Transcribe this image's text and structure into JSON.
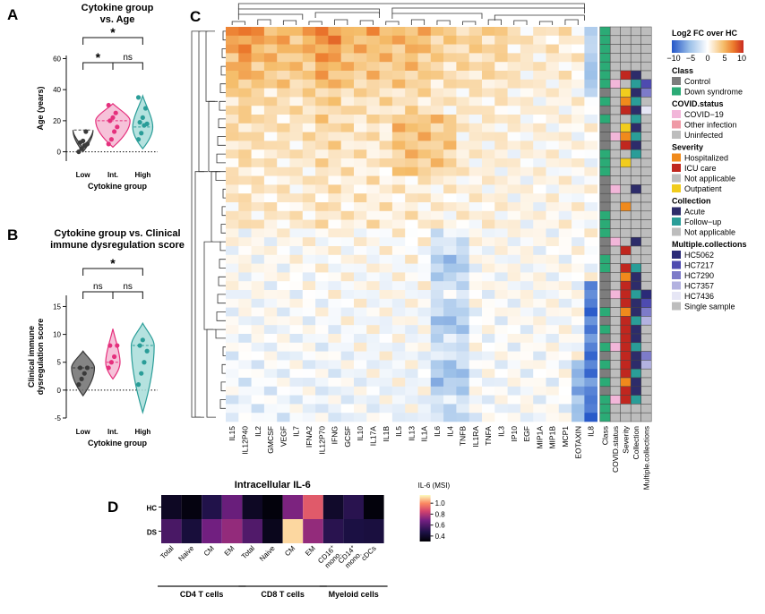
{
  "panels": {
    "A": "A",
    "B": "B",
    "C": "C",
    "D": "D"
  },
  "chart_data": [
    {
      "id": "A",
      "type": "violin",
      "title_lines": [
        "Cytokine group",
        "vs. Age"
      ],
      "xlabel": "Cytokine group",
      "ylabel": "Age (years)",
      "categories": [
        "Low",
        "Int.",
        "High"
      ],
      "colors": [
        "#3a3a3a",
        "#e5307d",
        "#2a9d98"
      ],
      "fills": [
        "#6e6e6e",
        "#f5b7d2",
        "#a8ddd9"
      ],
      "ylim": [
        -6,
        62
      ],
      "yticks": [
        0,
        20,
        40,
        60
      ],
      "points": [
        [
          0,
          2,
          4,
          5,
          6,
          7,
          13
        ],
        [
          5,
          8,
          13,
          16,
          20,
          22,
          25,
          30
        ],
        [
          8,
          12,
          17,
          18,
          19,
          22,
          28,
          35
        ]
      ],
      "spread": [
        [
          0,
          2,
          14,
          2,
          7
        ],
        [
          3,
          7,
          20,
          31,
          12
        ],
        [
          2,
          5,
          16,
          36,
          7
        ]
      ],
      "significance": [
        {
          "from": 0,
          "to": 1,
          "label": "*",
          "level": 1
        },
        {
          "from": 1,
          "to": 2,
          "label": "ns",
          "level": 1
        },
        {
          "from": 0,
          "to": 2,
          "label": "*",
          "level": 2
        }
      ]
    },
    {
      "id": "B",
      "type": "violin",
      "title_lines": [
        "Cytokine group vs. Clinical",
        "immune dysregulation score"
      ],
      "xlabel": "Cytokine group",
      "ylabel": "Clinical immune dysregulation score",
      "ylabel_lines": [
        "Clinical immune",
        "dysregulation score"
      ],
      "categories": [
        "Low",
        "Int.",
        "High"
      ],
      "colors": [
        "#3a3a3a",
        "#e5307d",
        "#2a9d98"
      ],
      "fills": [
        "#6e6e6e",
        "#f5b7d2",
        "#a8ddd9"
      ],
      "ylim": [
        -5,
        17
      ],
      "yticks": [
        -5,
        0,
        5,
        10,
        15
      ],
      "points": [
        [
          1,
          2,
          3,
          4,
          4
        ],
        [
          4,
          5,
          6,
          8,
          8
        ],
        [
          1,
          3,
          5,
          7,
          8,
          9
        ]
      ],
      "spread": [
        [
          -1,
          2,
          4,
          7,
          8
        ],
        [
          2,
          4,
          5,
          11,
          5
        ],
        [
          -4,
          2,
          8,
          12,
          8
        ]
      ],
      "significance": [
        {
          "from": 0,
          "to": 1,
          "label": "ns",
          "level": 1
        },
        {
          "from": 1,
          "to": 2,
          "label": "ns",
          "level": 1
        },
        {
          "from": 0,
          "to": 2,
          "label": "*",
          "level": 2
        }
      ]
    },
    {
      "id": "C",
      "type": "heatmap",
      "columns": [
        "IL15",
        "IL12P40",
        "IL2",
        "GMCSF",
        "VEGF",
        "IL7",
        "IFNA2",
        "IL12P70",
        "IFNG",
        "GCSF",
        "IL10",
        "IL17A",
        "IL1B",
        "IL5",
        "IL13",
        "IL1A",
        "IL6",
        "IL4",
        "TNFB",
        "IL1RA",
        "TNFA",
        "IL3",
        "IP10",
        "EGF",
        "MIP1A",
        "MIP1B",
        "MCP1",
        "EOTAXIN",
        "IL8"
      ],
      "annotation_columns": [
        "Class",
        "COVID.status",
        "Severity",
        "Collection",
        "Multiple.collections"
      ],
      "n_rows": 45,
      "color_scale": {
        "min": -10,
        "max": 10,
        "ticks": [
          -10,
          -5,
          0,
          5,
          10
        ],
        "low": "#2456c8",
        "mid": "#ffffff",
        "high": "#c92a1f"
      },
      "legend_title": "Log2 FC over HC"
    },
    {
      "id": "D",
      "type": "heatmap",
      "title": "Intracellular IL-6",
      "rows": [
        "HC",
        "DS"
      ],
      "columns": [
        "Total",
        "Naive",
        "CM",
        "EM",
        "Total",
        "Naive",
        "CM",
        "EM",
        "CD16+ mono.",
        "CD14+ mono.",
        "cDCs"
      ],
      "column_labels": [
        {
          "main": "Total",
          "sup": ""
        },
        {
          "main": "Naive",
          "sup": ""
        },
        {
          "main": "CM",
          "sup": ""
        },
        {
          "main": "EM",
          "sup": ""
        },
        {
          "main": "Total",
          "sup": ""
        },
        {
          "main": "Naive",
          "sup": ""
        },
        {
          "main": "CM",
          "sup": ""
        },
        {
          "main": "EM",
          "sup": ""
        },
        {
          "main": "CD16",
          "sup": "+",
          "line2": "mono."
        },
        {
          "main": "CD14",
          "sup": "+",
          "line2": "mono."
        },
        {
          "main": "cDCs",
          "sup": ""
        }
      ],
      "values": [
        [
          0.38,
          0.33,
          0.48,
          0.66,
          0.38,
          0.32,
          0.7,
          0.9,
          0.4,
          0.5,
          0.32
        ],
        [
          0.58,
          0.44,
          0.68,
          0.74,
          0.6,
          0.36,
          1.1,
          0.74,
          0.5,
          0.46,
          0.45
        ]
      ],
      "groups": [
        {
          "label": "CD4 T cells",
          "start": 0,
          "end": 3
        },
        {
          "label": "CD8 T cells",
          "start": 4,
          "end": 7
        },
        {
          "label": "Myeloid cells",
          "start": 8,
          "end": 10
        }
      ],
      "color_scale": {
        "min": 0.3,
        "max": 1.15,
        "ticks": [
          0.4,
          0.6,
          0.8,
          1.0
        ]
      },
      "legend_title": "IL-6 (MSI)"
    }
  ],
  "legend_c": {
    "title": "Log2 FC over HC",
    "ticks": [
      "−10",
      "−5",
      "0",
      "5",
      "10"
    ],
    "sections": [
      {
        "title": "Class",
        "items": [
          {
            "label": "Control",
            "color": "#7d7d7d"
          },
          {
            "label": "Down syndrome",
            "color": "#2bab76"
          }
        ]
      },
      {
        "title": "COVID.status",
        "items": [
          {
            "label": "COVID−19",
            "color": "#f2b6d9"
          },
          {
            "label": "Other infection",
            "color": "#ef9aa6"
          },
          {
            "label": "Uninfected",
            "color": "#bdbdbd"
          }
        ]
      },
      {
        "title": "Severity",
        "items": [
          {
            "label": "Hospitalized",
            "color": "#f08a1c"
          },
          {
            "label": "ICU care",
            "color": "#c0271f"
          },
          {
            "label": "Not applicable",
            "color": "#bdbdbd"
          },
          {
            "label": "Outpatient",
            "color": "#f1cc1d"
          }
        ]
      },
      {
        "title": "Collection",
        "items": [
          {
            "label": "Acute",
            "color": "#2d2c6a"
          },
          {
            "label": "Follow−up",
            "color": "#2a9d98"
          },
          {
            "label": "Not applicable",
            "color": "#bdbdbd"
          }
        ]
      },
      {
        "title": "Multiple.collections",
        "items": [
          {
            "label": "HC5062",
            "color": "#2a2a78"
          },
          {
            "label": "HC7217",
            "color": "#4e4bb0"
          },
          {
            "label": "HC7290",
            "color": "#7d7bc9"
          },
          {
            "label": "HC7357",
            "color": "#b3b2e0"
          },
          {
            "label": "HC7436",
            "color": "#e6e6f5"
          },
          {
            "label": "Single sample",
            "color": "#bdbdbd"
          }
        ]
      }
    ]
  }
}
